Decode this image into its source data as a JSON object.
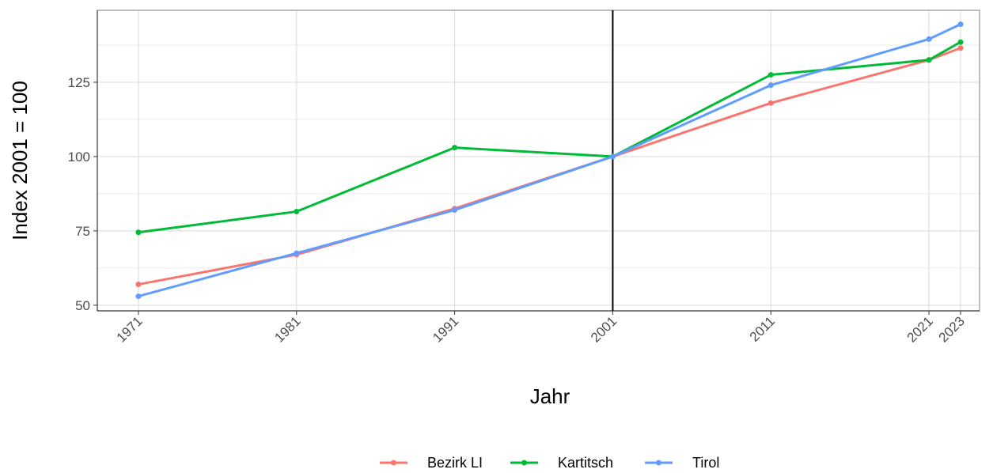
{
  "chart_data": {
    "type": "line",
    "x": [
      1971,
      1981,
      1991,
      2001,
      2011,
      2021,
      2023
    ],
    "series": [
      {
        "name": "Bezirk LI",
        "color": "#F8766D",
        "values": [
          57,
          67,
          82.5,
          100,
          118,
          132.5,
          136.5
        ]
      },
      {
        "name": "Kartitsch",
        "color": "#00BA38",
        "values": [
          74.5,
          81.5,
          103,
          100,
          127.5,
          132.5,
          138.5
        ]
      },
      {
        "name": "Tirol",
        "color": "#619CFF",
        "values": [
          53,
          67.5,
          82,
          100,
          124,
          139.5,
          144.5
        ]
      }
    ],
    "xlabel": "Jahr",
    "ylabel": "Index 2001 = 100",
    "xlim": [
      1968.4,
      2024.2
    ],
    "ylim": [
      48.1,
      149.2
    ],
    "xticks": [
      1971,
      1981,
      1991,
      2001,
      2011,
      2021,
      2023
    ],
    "yticks": [
      50,
      75,
      100,
      125
    ],
    "yminor": [
      62.5,
      87.5,
      112.5,
      137.5
    ],
    "vline": 2001,
    "grid": true,
    "legend": "bottom"
  }
}
